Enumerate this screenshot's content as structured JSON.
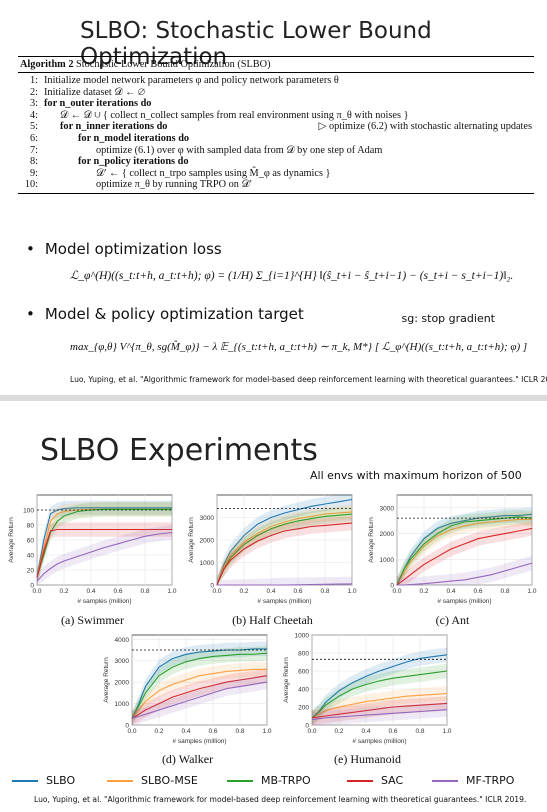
{
  "slide1": {
    "title": "SLBO: Stochastic Lower Bound Optimization",
    "algorithm": {
      "header_bold": "Algorithm 2",
      "header_rest": " Stochastic Lower Bound Optimization (SLBO)",
      "lines": [
        {
          "num": "1:",
          "text": "Initialize model network parameters φ and policy network parameters θ"
        },
        {
          "num": "2:",
          "text": "Initialize dataset 𝒟 ← ∅"
        },
        {
          "num": "3:",
          "text": "for n_outer iterations do"
        },
        {
          "num": "4:",
          "text": "𝒟 ← 𝒟 ∪ { collect n_collect samples from real environment using π_θ with noises }"
        },
        {
          "num": "5:",
          "text": "for n_inner iterations do",
          "comment": "▷ optimize (6.2) with stochastic alternating updates"
        },
        {
          "num": "6:",
          "text": "for n_model iterations do"
        },
        {
          "num": "7:",
          "text": "optimize (6.1) over φ with sampled data from 𝒟 by one step of Adam"
        },
        {
          "num": "8:",
          "text": "for n_policy iterations do"
        },
        {
          "num": "9:",
          "text": "𝒟′ ← { collect n_trpo samples using M̂_φ as dynamics }"
        },
        {
          "num": "10:",
          "text": "optimize π_θ by running TRPO on 𝒟′"
        }
      ]
    },
    "bullet1": "Model optimization loss",
    "formula1": "ℒ_φ^(H)((s_t:t+h, a_t:t+h); φ) = (1/H) Σ_{i=1}^{H} ‖(ŝ_t+i − ŝ_t+i−1) − (s_t+i − s_t+i−1)‖₂.",
    "bullet2": "Model & policy optimization target",
    "sg_note": "sg: stop gradient",
    "formula2": "max_{φ,θ}  V^{π_θ, sg(M̂_φ)} − λ  𝔼_{(s_t:t+h, a_t:t+h) ∼ π_k, M*} [ ℒ_φ^(H)((s_t:t+h, a_t:t+h); φ) ]",
    "citation": "Luo, Yuping, et al. \"Algorithmic framework for model-based deep reinforcement learning with theoretical guarantees.\" ICLR 2019."
  },
  "slide2": {
    "title": "SLBO Experiments",
    "note": "All envs with maximum horizon of 500",
    "legend": [
      {
        "name": "SLBO",
        "color": "#1f77b4"
      },
      {
        "name": "SLBO-MSE",
        "color": "#ff9f40"
      },
      {
        "name": "MB-TRPO",
        "color": "#2ca02c"
      },
      {
        "name": "SAC",
        "color": "#d62728"
      },
      {
        "name": "MF-TRPO",
        "color": "#9467bd"
      }
    ],
    "citation": "Luo, Yuping, et al. \"Algorithmic framework for model-based deep reinforcement learning with theoretical guarantees.\" ICLR 2019."
  },
  "chart_data": [
    {
      "type": "line",
      "caption": "(a) Swimmer",
      "xlabel": "# samples (million)",
      "ylabel": "Average Return",
      "xlim": [
        0,
        1.0
      ],
      "ylim": [
        0,
        120
      ],
      "yticks": [
        0,
        20,
        40,
        60,
        80,
        100
      ],
      "xticks": [
        0.0,
        0.2,
        0.4,
        0.6,
        0.8,
        1.0
      ],
      "ref": 100,
      "x": [
        0,
        0.05,
        0.1,
        0.15,
        0.2,
        0.3,
        0.4,
        0.5,
        0.6,
        0.7,
        0.8,
        0.9,
        1.0
      ],
      "series": [
        {
          "name": "SLBO",
          "values": [
            10,
            60,
            95,
            100,
            102,
            103,
            103,
            103,
            103,
            103,
            103,
            103,
            103
          ]
        },
        {
          "name": "SLBO-MSE",
          "values": [
            10,
            50,
            85,
            95,
            98,
            100,
            101,
            101,
            101,
            101,
            101,
            101,
            101
          ]
        },
        {
          "name": "MB-TRPO",
          "values": [
            10,
            40,
            70,
            85,
            92,
            98,
            100,
            101,
            101,
            101,
            101,
            101,
            101
          ]
        },
        {
          "name": "SAC",
          "values": [
            10,
            45,
            72,
            74,
            74,
            74,
            74,
            74,
            74,
            74,
            74,
            74,
            74
          ]
        },
        {
          "name": "MF-TRPO",
          "values": [
            5,
            15,
            22,
            28,
            32,
            38,
            44,
            50,
            55,
            60,
            65,
            68,
            70
          ]
        }
      ]
    },
    {
      "type": "line",
      "caption": "(b) Half Cheetah",
      "xlabel": "# samples (million)",
      "ylabel": "Average Return",
      "xlim": [
        0,
        1.0
      ],
      "ylim": [
        0,
        4000
      ],
      "yticks": [
        0,
        1000,
        2000,
        3000
      ],
      "xticks": [
        0.0,
        0.2,
        0.4,
        0.6,
        0.8,
        1.0
      ],
      "ref": 3400,
      "x": [
        0,
        0.05,
        0.1,
        0.2,
        0.3,
        0.4,
        0.5,
        0.6,
        0.7,
        0.8,
        0.9,
        1.0
      ],
      "series": [
        {
          "name": "SLBO",
          "values": [
            0,
            900,
            1500,
            2200,
            2700,
            3000,
            3200,
            3350,
            3500,
            3600,
            3700,
            3800
          ]
        },
        {
          "name": "SLBO-MSE",
          "values": [
            0,
            800,
            1300,
            1900,
            2300,
            2600,
            2800,
            2950,
            3050,
            3150,
            3200,
            3250
          ]
        },
        {
          "name": "MB-TRPO",
          "values": [
            0,
            700,
            1200,
            1800,
            2200,
            2500,
            2700,
            2850,
            2950,
            3050,
            3100,
            3150
          ]
        },
        {
          "name": "SAC",
          "values": [
            0,
            700,
            1100,
            1600,
            1950,
            2200,
            2400,
            2500,
            2600,
            2650,
            2700,
            2750
          ]
        },
        {
          "name": "MF-TRPO",
          "values": [
            -100,
            -100,
            -80,
            -60,
            -40,
            -20,
            0,
            10,
            20,
            30,
            40,
            50
          ]
        }
      ]
    },
    {
      "type": "line",
      "caption": "(c) Ant",
      "xlabel": "# samples (million)",
      "ylabel": "Average Return",
      "xlim": [
        0,
        1.0
      ],
      "ylim": [
        0,
        3500
      ],
      "yticks": [
        0,
        1000,
        2000,
        3000
      ],
      "xticks": [
        0.0,
        0.2,
        0.4,
        0.6,
        0.8,
        1.0
      ],
      "ref": 2600,
      "x": [
        0,
        0.05,
        0.1,
        0.2,
        0.3,
        0.4,
        0.5,
        0.6,
        0.7,
        0.8,
        0.9,
        1.0
      ],
      "series": [
        {
          "name": "SLBO",
          "values": [
            0,
            600,
            1100,
            1800,
            2200,
            2400,
            2500,
            2600,
            2650,
            2700,
            2700,
            2750
          ]
        },
        {
          "name": "SLBO-MSE",
          "values": [
            0,
            500,
            900,
            1500,
            1900,
            2150,
            2300,
            2400,
            2450,
            2500,
            2550,
            2550
          ]
        },
        {
          "name": "MB-TRPO",
          "values": [
            0,
            600,
            1000,
            1600,
            2000,
            2300,
            2450,
            2500,
            2550,
            2600,
            2650,
            2600
          ]
        },
        {
          "name": "SAC",
          "values": [
            0,
            200,
            400,
            800,
            1100,
            1400,
            1600,
            1800,
            1900,
            2000,
            2100,
            2200
          ]
        },
        {
          "name": "MF-TRPO",
          "values": [
            0,
            0,
            20,
            50,
            100,
            150,
            200,
            300,
            400,
            550,
            700,
            850
          ]
        }
      ]
    },
    {
      "type": "line",
      "caption": "(d) Walker",
      "xlabel": "# samples (million)",
      "ylabel": "Average Return",
      "xlim": [
        0,
        1.0
      ],
      "ylim": [
        0,
        4200
      ],
      "yticks": [
        0,
        1000,
        2000,
        3000,
        4000
      ],
      "xticks": [
        0.0,
        0.2,
        0.4,
        0.6,
        0.8,
        1.0
      ],
      "ref": 3500,
      "x": [
        0,
        0.05,
        0.1,
        0.2,
        0.3,
        0.4,
        0.5,
        0.6,
        0.7,
        0.8,
        0.9,
        1.0
      ],
      "series": [
        {
          "name": "SLBO",
          "values": [
            300,
            1000,
            1800,
            2700,
            3100,
            3300,
            3400,
            3450,
            3500,
            3500,
            3550,
            3550
          ]
        },
        {
          "name": "SLBO-MSE",
          "values": [
            300,
            700,
            1100,
            1600,
            1900,
            2100,
            2300,
            2400,
            2500,
            2550,
            2600,
            2600
          ]
        },
        {
          "name": "MB-TRPO",
          "values": [
            300,
            900,
            1500,
            2300,
            2700,
            2950,
            3100,
            3200,
            3250,
            3300,
            3300,
            3350
          ]
        },
        {
          "name": "SAC",
          "values": [
            300,
            500,
            700,
            1000,
            1300,
            1500,
            1700,
            1850,
            2000,
            2100,
            2200,
            2300
          ]
        },
        {
          "name": "MF-TRPO",
          "values": [
            300,
            400,
            500,
            700,
            900,
            1100,
            1300,
            1500,
            1700,
            1800,
            1900,
            2000
          ]
        }
      ]
    },
    {
      "type": "line",
      "caption": "(e) Humanoid",
      "xlabel": "# samples (million)",
      "ylabel": "Average Return",
      "xlim": [
        0,
        1.0
      ],
      "ylim": [
        0,
        1000
      ],
      "yticks": [
        0,
        200,
        400,
        600,
        800,
        1000
      ],
      "xticks": [
        0.0,
        0.2,
        0.4,
        0.6,
        0.8,
        1.0
      ],
      "ref": 730,
      "x": [
        0,
        0.05,
        0.1,
        0.2,
        0.3,
        0.4,
        0.5,
        0.6,
        0.7,
        0.8,
        0.9,
        1.0
      ],
      "series": [
        {
          "name": "SLBO",
          "values": [
            80,
            150,
            250,
            380,
            470,
            540,
            600,
            650,
            700,
            740,
            760,
            780
          ]
        },
        {
          "name": "SLBO-MSE",
          "values": [
            80,
            120,
            160,
            200,
            230,
            260,
            280,
            300,
            320,
            330,
            340,
            350
          ]
        },
        {
          "name": "MB-TRPO",
          "values": [
            80,
            140,
            220,
            320,
            400,
            450,
            490,
            520,
            540,
            560,
            580,
            600
          ]
        },
        {
          "name": "SAC",
          "values": [
            80,
            90,
            100,
            120,
            140,
            160,
            180,
            200,
            210,
            220,
            230,
            240
          ]
        },
        {
          "name": "MF-TRPO",
          "values": [
            60,
            70,
            80,
            90,
            100,
            110,
            120,
            130,
            140,
            150,
            160,
            170
          ]
        }
      ]
    }
  ]
}
